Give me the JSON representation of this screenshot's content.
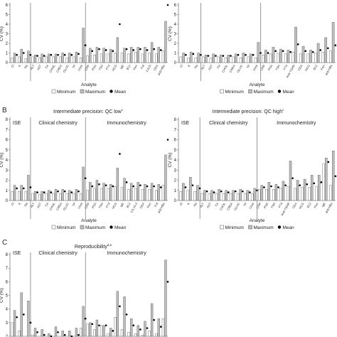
{
  "colors": {
    "minimum": "#ffffff",
    "maximum": "#bdbdbd",
    "mean": "#000000",
    "stroke": "#555555",
    "axis": "#555555"
  },
  "chart_data": [
    {
      "type": "bar",
      "title": "",
      "xlabel": "Analyte",
      "ylabel": "CV (%)",
      "ylim": [
        0,
        6
      ],
      "yticks": [
        0,
        1,
        2,
        3,
        4,
        5,
        6
      ],
      "grid": false,
      "legend": [
        "Minimum",
        "Maximum",
        "Mean"
      ],
      "legend_position": "bottom",
      "sections": [],
      "categories": [
        "Cl",
        "K",
        "Na",
        "ALT",
        "AST",
        "Ca",
        "CHOL",
        "CREA",
        "GLUC",
        "TP",
        "Urea",
        "CRP",
        "PSA",
        "TSH",
        "FT4",
        "HCG",
        "IgE",
        "B12",
        "Ferr",
        "Fol",
        "CA15",
        "CEA",
        "anti-HBs"
      ],
      "separators_after": [
        2,
        10
      ],
      "series": [
        {
          "name": "Minimum",
          "values": [
            0.5,
            0.6,
            0.4,
            0.6,
            0.5,
            0.6,
            0.6,
            0.6,
            0.5,
            0.6,
            0.5,
            0.7,
            0.8,
            0.9,
            0.9,
            1.0,
            1.0,
            0.9,
            1.1,
            0.9,
            1.0,
            0.9,
            1.2
          ]
        },
        {
          "name": "Maximum",
          "values": [
            1.0,
            1.4,
            1.2,
            0.8,
            0.9,
            0.9,
            0.9,
            1.0,
            1.0,
            1.1,
            3.6,
            1.5,
            1.6,
            1.5,
            1.4,
            2.6,
            1.5,
            1.6,
            1.6,
            1.6,
            2.1,
            1.6,
            4.3
          ]
        },
        {
          "name": "Mean",
          "values": [
            0.8,
            1.0,
            0.8,
            0.7,
            0.7,
            0.8,
            0.8,
            0.8,
            0.8,
            0.9,
            1.8,
            1.2,
            1.4,
            1.3,
            1.2,
            4.0,
            1.4,
            1.3,
            1.4,
            1.3,
            1.4,
            1.3,
            6.1
          ]
        }
      ]
    },
    {
      "type": "bar",
      "title": "",
      "xlabel": "Analyte",
      "ylabel": "CV (%)",
      "ylim": [
        0,
        6
      ],
      "yticks": [
        0,
        1,
        2,
        3,
        4,
        5,
        6
      ],
      "grid": false,
      "legend": [
        "Minimum",
        "Maximum",
        "Mean"
      ],
      "legend_position": "bottom",
      "sections": [],
      "categories": [
        "Cl",
        "K",
        "Na",
        "ALT",
        "AST",
        "Ca",
        "CHOL",
        "CREA",
        "GLUC",
        "TP",
        "Urea",
        "CRP",
        "PSA",
        "TSH",
        "FT4",
        "Anti-TSHR",
        "CEA",
        "HCG",
        "B12",
        "Ferr",
        "anti-HBs"
      ],
      "separators_after": [
        2,
        10
      ],
      "series": [
        {
          "name": "Minimum",
          "values": [
            0.6,
            0.5,
            0.5,
            0.6,
            0.5,
            0.6,
            0.5,
            0.6,
            0.5,
            0.6,
            0.5,
            0.8,
            0.9,
            1.0,
            0.9,
            1.1,
            0.9,
            0.9,
            1.0,
            1.1,
            1.2
          ]
        },
        {
          "name": "Maximum",
          "values": [
            1.0,
            1.1,
            1.0,
            0.8,
            0.9,
            0.8,
            0.8,
            0.9,
            1.0,
            0.9,
            2.1,
            1.3,
            1.6,
            1.4,
            1.3,
            3.7,
            1.7,
            1.3,
            2.0,
            2.6,
            4.2
          ]
        },
        {
          "name": "Mean",
          "values": [
            0.8,
            0.9,
            0.8,
            0.7,
            0.7,
            0.7,
            0.7,
            0.8,
            0.8,
            0.8,
            1.0,
            1.0,
            1.2,
            1.2,
            1.1,
            1.9,
            1.2,
            1.1,
            1.3,
            1.5,
            1.8
          ]
        }
      ]
    },
    {
      "type": "bar",
      "title": "Intermediate precision: QC low",
      "xlabel": "Analyte",
      "ylabel": "CV (%)",
      "ylim": [
        0,
        8
      ],
      "yticks": [
        0,
        1,
        2,
        3,
        4,
        5,
        6,
        7,
        8
      ],
      "grid": false,
      "legend": [
        "Minimum",
        "Maximum",
        "Mean"
      ],
      "legend_position": "bottom",
      "sections": [
        "ISE",
        "Clinical chemistry",
        "Immunochemistry"
      ],
      "categories": [
        "Cl",
        "K",
        "Na",
        "ALT",
        "AST",
        "Ca",
        "CHOL",
        "CREA",
        "GLUC",
        "TP",
        "Urea",
        "CRP",
        "PSA",
        "TSH",
        "FT4",
        "HCG",
        "IgE",
        "B12",
        "CA 15-3",
        "CEA",
        "Ferr",
        "Fol",
        "anti-HBs"
      ],
      "separators_after": [
        2,
        10
      ],
      "series": [
        {
          "name": "Minimum",
          "values": [
            0.9,
            0.9,
            0.9,
            0.7,
            0.6,
            0.7,
            0.7,
            0.7,
            0.7,
            0.7,
            0.7,
            1.0,
            1.2,
            1.2,
            1.2,
            1.4,
            1.3,
            1.1,
            1.2,
            1.1,
            1.1,
            1.0,
            1.5
          ]
        },
        {
          "name": "Maximum",
          "values": [
            1.5,
            1.5,
            2.5,
            0.9,
            0.9,
            1.0,
            1.1,
            1.1,
            1.0,
            1.1,
            3.3,
            1.8,
            2.0,
            1.7,
            1.6,
            3.2,
            2.2,
            1.7,
            1.8,
            1.6,
            1.7,
            1.6,
            4.5
          ]
        },
        {
          "name": "Mean",
          "values": [
            1.2,
            1.2,
            1.3,
            0.8,
            0.8,
            0.8,
            0.9,
            0.9,
            0.8,
            0.9,
            2.2,
            1.4,
            1.6,
            1.5,
            1.4,
            4.6,
            1.8,
            1.4,
            1.5,
            1.4,
            1.4,
            1.3,
            6.0
          ]
        }
      ]
    },
    {
      "type": "bar",
      "title": "Intermediate precision: QC high",
      "xlabel": "Analyte",
      "ylabel": "CV (%)",
      "ylim": [
        0,
        8
      ],
      "yticks": [
        0,
        1,
        2,
        3,
        4,
        5,
        6,
        7,
        8
      ],
      "grid": false,
      "legend": [
        "Minimum",
        "Maximum",
        "Mean"
      ],
      "legend_position": "bottom",
      "sections": [
        "ISE",
        "Clinical chemistry",
        "Immunochemistry"
      ],
      "categories": [
        "Cl",
        "K",
        "Na",
        "ALT",
        "AST",
        "Ca",
        "CHOL",
        "CREA",
        "GLUC",
        "TP",
        "Urea",
        "CRP",
        "PSA",
        "TSH",
        "FT4",
        "Anti-TSHR",
        "CEA",
        "HCG",
        "B12",
        "Ferr",
        "IgE",
        "anti-HBs"
      ],
      "separators_after": [
        2,
        10
      ],
      "series": [
        {
          "name": "Minimum",
          "values": [
            0.9,
            1.0,
            0.9,
            0.7,
            0.7,
            0.7,
            0.7,
            0.7,
            0.7,
            0.7,
            0.7,
            1.1,
            1.1,
            1.1,
            1.2,
            1.4,
            1.2,
            1.3,
            1.3,
            1.4,
            3.6,
            1.5
          ]
        },
        {
          "name": "Maximum",
          "values": [
            1.7,
            2.3,
            1.5,
            1.0,
            1.0,
            1.1,
            1.0,
            1.0,
            1.1,
            1.0,
            1.2,
            1.5,
            1.8,
            1.6,
            1.9,
            3.9,
            2.0,
            2.1,
            2.5,
            2.5,
            4.2,
            4.9
          ]
        },
        {
          "name": "Mean",
          "values": [
            1.3,
            1.5,
            1.2,
            0.9,
            0.8,
            0.9,
            0.8,
            0.9,
            0.9,
            0.8,
            1.0,
            1.3,
            1.4,
            1.3,
            1.5,
            2.2,
            1.5,
            1.6,
            1.7,
            1.8,
            3.8,
            2.4
          ]
        }
      ]
    },
    {
      "type": "bar",
      "title": "Reproducibility",
      "xlabel": "",
      "ylabel": "CV (%)",
      "ylim": [
        2,
        8
      ],
      "yticks": [
        2,
        3,
        4,
        5,
        6,
        7,
        8
      ],
      "grid": false,
      "legend": [],
      "sections": [
        "ISE",
        "Clinical chemistry",
        "Immunochemistry"
      ],
      "categories": [
        "Cl",
        "K",
        "Na",
        "ALT",
        "AST",
        "Ca",
        "CHOL",
        "CREA",
        "GLUC",
        "TP",
        "Urea",
        "CRP",
        "PSA",
        "TSH",
        "FT4",
        "HCG",
        "IgE",
        "B12",
        "CA 15-3",
        "CEA",
        "Ferr",
        "Fol",
        "anti-HBs"
      ],
      "separators_after": [
        2,
        10
      ],
      "series": [
        {
          "name": "Minimum",
          "values": [
            3.0,
            2.4,
            1.8,
            2.1,
            1.7,
            1.6,
            2.0,
            1.9,
            1.7,
            1.6,
            2.6,
            2.9,
            2.5,
            2.8,
            2.2,
            3.4,
            2.5,
            2.3,
            2.2,
            2.1,
            2.4,
            2.2,
            3.3
          ]
        },
        {
          "name": "Maximum",
          "values": [
            3.9,
            5.2,
            4.6,
            2.6,
            2.5,
            2.2,
            2.7,
            2.4,
            2.4,
            2.6,
            4.2,
            3.0,
            3.2,
            2.8,
            2.6,
            5.3,
            4.9,
            3.3,
            2.8,
            3.1,
            4.4,
            3.3,
            7.6
          ]
        },
        {
          "name": "Mean",
          "values": [
            3.4,
            3.6,
            3.0,
            2.3,
            2.1,
            1.9,
            2.3,
            2.1,
            2.0,
            2.1,
            3.3,
            2.9,
            2.8,
            2.8,
            2.4,
            4.2,
            3.6,
            2.8,
            2.5,
            2.6,
            3.2,
            2.7,
            6.0
          ]
        }
      ]
    }
  ],
  "panel_letters": [
    "B",
    "C"
  ],
  "panel_titles": {
    "qc_low": {
      "text": "Intermediate precision: QC low",
      "sup": "c"
    },
    "qc_high": {
      "text": "Intermediate precision: QC high",
      "sup": "c"
    },
    "repro": {
      "text": "Reproducibility",
      "sup": "d,e"
    }
  }
}
